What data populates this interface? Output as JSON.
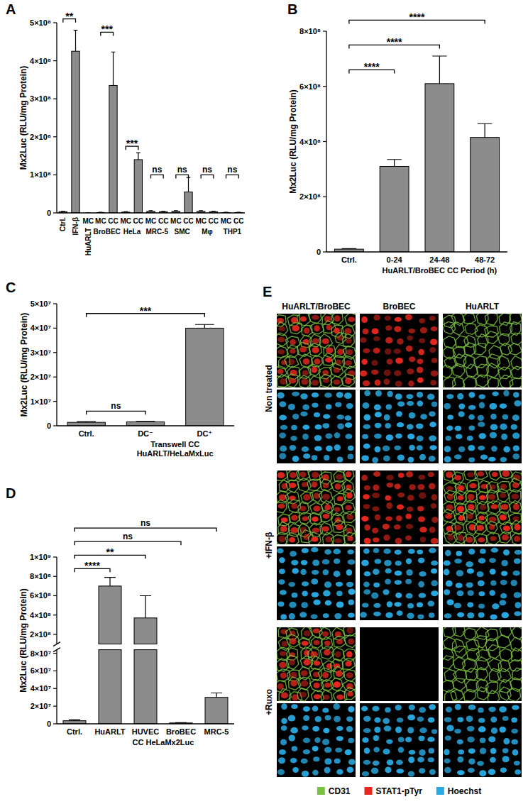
{
  "chart_data": [
    {
      "panel": "A",
      "type": "bar",
      "y_label": "Mx2Luc (RLU/mg Protein)",
      "categories": [
        "Ctrl.",
        "IFN-β",
        "MC",
        "MC",
        "CC",
        "MC",
        "CC",
        "MC",
        "CC",
        "MC",
        "CC",
        "MC",
        "CC",
        "MC",
        "CC"
      ],
      "groups": [
        null,
        null,
        "HuARLT",
        "BroBEC",
        "BroBEC",
        "HeLa",
        "HeLa",
        "MRC-5",
        "MRC-5",
        "SMC",
        "SMC",
        "Mφ",
        "Mφ",
        "THP1",
        "THP1"
      ],
      "values": [
        3000000,
        425000000,
        0,
        1000000,
        335000000,
        2000000,
        140000000,
        4000000,
        3000000,
        4000000,
        55000000,
        4000000,
        3000000,
        1000000,
        1000000
      ],
      "errors": [
        1000000,
        55000000,
        0,
        500000,
        88000000,
        1000000,
        18000000,
        2000000,
        1000000,
        2000000,
        38000000,
        2000000,
        1000000,
        500000,
        500000
      ],
      "color": "#8c8c8c",
      "ylim": [
        0,
        500000000
      ],
      "yticks": [
        0,
        {
          "value": 100000000,
          "label": "1×10⁸"
        },
        {
          "value": 200000000,
          "label": "2×10⁸"
        },
        {
          "value": 300000000,
          "label": "3×10⁸"
        },
        {
          "value": 400000000,
          "label": "4×10⁸"
        },
        {
          "value": 500000000,
          "label": "5×10⁸"
        }
      ],
      "comparisons": [
        {
          "from": 0,
          "to": 1,
          "label": "**",
          "y": 510000000
        },
        {
          "from": 3,
          "to": 4,
          "label": "***",
          "y": 475000000
        },
        {
          "from": 5,
          "to": 6,
          "label": "***",
          "y": 175000000
        },
        {
          "from": 7,
          "to": 8,
          "label": "ns",
          "y": 100000000
        },
        {
          "from": 9,
          "to": 10,
          "label": "ns",
          "y": 100000000
        },
        {
          "from": 11,
          "to": 12,
          "label": "ns",
          "y": 100000000
        },
        {
          "from": 13,
          "to": 14,
          "label": "ns",
          "y": 100000000
        }
      ]
    },
    {
      "panel": "B",
      "type": "bar",
      "y_label": "Mx2Luc (RLU/mg Protein)",
      "categories": [
        "Ctrl.",
        "0-24",
        "24-48",
        "48-72"
      ],
      "groups": [
        null,
        "HuARLT/BroBEC CC Period (h)",
        "HuARLT/BroBEC CC Period (h)",
        "HuARLT/BroBEC CC Period (h)"
      ],
      "values": [
        10000000,
        310000000,
        610000000,
        415000000
      ],
      "errors": [
        2000000,
        25000000,
        100000000,
        50000000
      ],
      "color": "#8c8c8c",
      "ylim": [
        0,
        800000000
      ],
      "yticks": [
        0,
        {
          "value": 200000000,
          "label": "2×10⁸"
        },
        {
          "value": 400000000,
          "label": "4×10⁸"
        },
        {
          "value": 600000000,
          "label": "6×10⁸"
        },
        {
          "value": 800000000,
          "label": "8×10⁸"
        }
      ],
      "comparisons": [
        {
          "from": 0,
          "to": 1,
          "label": "****",
          "y": 660000000
        },
        {
          "from": 0,
          "to": 2,
          "label": "****",
          "y": 750000000
        },
        {
          "from": 0,
          "to": 3,
          "label": "****",
          "y": 840000000
        }
      ]
    },
    {
      "panel": "C",
      "type": "bar",
      "y_label": "Mx2Luc (RLU/mg Protein)",
      "categories": [
        "Ctrl.",
        "DC⁻",
        "DC⁺"
      ],
      "groups": [
        null,
        "Transwell CC HuARLT/HeLaMxLuc",
        "Transwell CC HuARLT/HeLaMxLuc"
      ],
      "values": [
        1400000,
        1600000,
        40000000
      ],
      "errors": [
        300000,
        200000,
        1500000
      ],
      "color": "#8c8c8c",
      "ylim": [
        0,
        50000000
      ],
      "yticks": [
        0,
        {
          "value": 10000000,
          "label": "1×10⁷"
        },
        {
          "value": 20000000,
          "label": "2×10⁷"
        },
        {
          "value": 30000000,
          "label": "3×10⁷"
        },
        {
          "value": 40000000,
          "label": "4×10⁷"
        },
        {
          "value": 50000000,
          "label": "5×10⁷"
        }
      ],
      "comparisons": [
        {
          "from": 0,
          "to": 1,
          "label": "ns",
          "y": 6000000
        },
        {
          "from": 0,
          "to": 2,
          "label": "***",
          "y": 46000000
        }
      ]
    },
    {
      "panel": "D",
      "type": "bar",
      "y_label": "Mx2Luc (RLU/mg Protein)",
      "categories": [
        "Ctrl.",
        "HuARLT",
        "HUVEC",
        "BroBEC",
        "MRC-5"
      ],
      "groups": [
        null,
        "CC HeLaMx2Luc",
        "CC HeLaMx2Luc",
        "CC HeLaMx2Luc",
        "CC HeLaMx2Luc"
      ],
      "values": [
        3500000,
        700000000,
        370000000,
        1000000,
        30000000
      ],
      "errors": [
        1000000,
        90000000,
        230000000,
        300000,
        5000000
      ],
      "color": "#8c8c8c",
      "y_segments": [
        {
          "ylim": [
            0,
            84000000
          ],
          "yticks": [
            0,
            {
              "value": 20000000,
              "label": "2×10⁷"
            },
            {
              "value": 40000000,
              "label": "4×10⁷"
            },
            {
              "value": 60000000,
              "label": "6×10⁷"
            },
            {
              "value": 80000000,
              "label": "8×10⁷"
            }
          ]
        },
        {
          "ylim": [
            100000000,
            1000000000
          ],
          "yticks": [
            {
              "value": 200000000,
              "label": "2×10⁸"
            },
            {
              "value": 400000000,
              "label": "4×10⁸"
            },
            {
              "value": 600000000,
              "label": "6×10⁸"
            },
            {
              "value": 800000000,
              "label": "8×10⁸"
            },
            {
              "value": 1000000000,
              "label": "1×10⁹"
            }
          ]
        }
      ],
      "comparisons": [
        {
          "from": 0,
          "to": 1,
          "label": "****",
          "y": 880000000
        },
        {
          "from": 0,
          "to": 2,
          "label": "**",
          "y": 1020000000
        },
        {
          "from": 0,
          "to": 3,
          "label": "ns",
          "y": 1160000000
        },
        {
          "from": 0,
          "to": 4,
          "label": "ns",
          "y": 1300000000
        }
      ]
    }
  ],
  "image_panel": {
    "panel": "E",
    "columns": [
      "HuARLT/BroBEC",
      "BroBEC",
      "HuARLT"
    ],
    "rows": [
      {
        "label": "Non treated",
        "channels": [
          [
            "CD31",
            "STAT1-pTyr"
          ],
          [
            "STAT1-pTyr"
          ],
          [
            "CD31"
          ]
        ]
      },
      {
        "label": "+IFN-β",
        "channels": [
          [
            "CD31",
            "STAT1-pTyr"
          ],
          [
            "STAT1-pTyr"
          ],
          [
            "CD31",
            "STAT1-pTyr"
          ]
        ]
      },
      {
        "label": "+Ruxo",
        "channels": [
          [
            "CD31",
            "STAT1-pTyr"
          ],
          [],
          [
            "CD31"
          ]
        ]
      }
    ],
    "counterstain": "Hoechst",
    "legend": [
      {
        "label": "CD31",
        "color": "#7cc242"
      },
      {
        "label": "STAT1-pTyr",
        "color": "#e8281e"
      },
      {
        "label": "Hoechst",
        "color": "#29a9e1"
      }
    ]
  }
}
